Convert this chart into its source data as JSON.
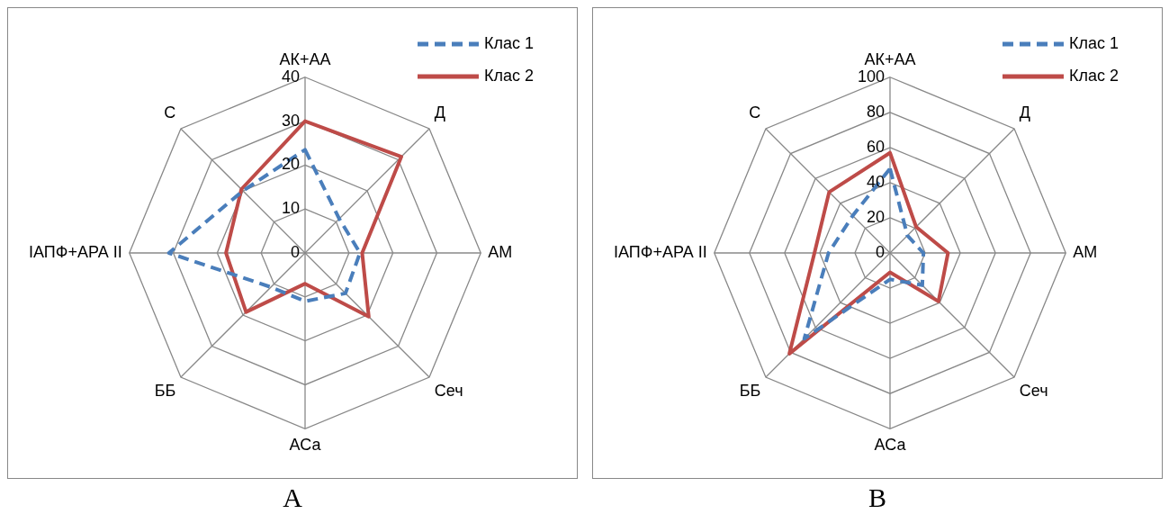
{
  "chart_data": [
    {
      "type": "radar",
      "title": "А",
      "categories": [
        "АК+АА",
        "Д",
        "АМ",
        "Сеч",
        "АСа",
        "ББ",
        "ІАПФ+АРА II",
        "С"
      ],
      "ylim": [
        0,
        40
      ],
      "yticks": [
        0,
        10,
        20,
        30,
        40
      ],
      "legend": "top right",
      "marker": "none",
      "grid": true,
      "series": [
        {
          "name": "Клас 1",
          "color": "#4a7ebb",
          "line_style": "dashed",
          "values": [
            23.5,
            11,
            12.5,
            13,
            11,
            11,
            31,
            20
          ]
        },
        {
          "name": "Клас 2",
          "color": "#be4b48",
          "line_style": "solid",
          "values": [
            30,
            31,
            13,
            20.5,
            7,
            19,
            18,
            20.5
          ]
        }
      ]
    },
    {
      "type": "radar",
      "title": "В",
      "categories": [
        "АК+АА",
        "Д",
        "АМ",
        "Сеч",
        "АСа",
        "ББ",
        "ІАПФ+АРА II",
        "С"
      ],
      "ylim": [
        0,
        100
      ],
      "yticks": [
        0,
        20,
        40,
        60,
        80,
        100
      ],
      "legend": "top right",
      "marker": "none",
      "grid": true,
      "series": [
        {
          "name": "Клас 1",
          "color": "#4a7ebb",
          "line_style": "dashed",
          "values": [
            48,
            14,
            19,
            26,
            15,
            69,
            35,
            30
          ]
        },
        {
          "name": "Клас 2",
          "color": "#be4b48",
          "line_style": "solid",
          "values": [
            57,
            21,
            33,
            39,
            11,
            81,
            43,
            49
          ]
        }
      ]
    }
  ]
}
